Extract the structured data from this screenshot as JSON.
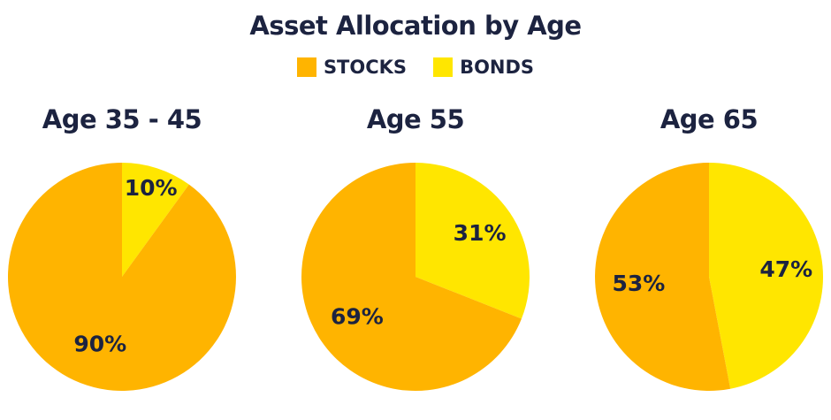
{
  "chart_data": {
    "type": "pie",
    "title": "Asset Allocation by Age",
    "legend": [
      {
        "label": "STOCKS",
        "color": "#FFB400"
      },
      {
        "label": "BONDS",
        "color": "#FFE600"
      }
    ],
    "legend_position": "top-center",
    "charts": [
      {
        "title": "Age 35 - 45",
        "slices": [
          {
            "name": "BONDS",
            "value": 10,
            "label": "10%"
          },
          {
            "name": "STOCKS",
            "value": 90,
            "label": "90%"
          }
        ]
      },
      {
        "title": "Age 55",
        "slices": [
          {
            "name": "BONDS",
            "value": 31,
            "label": "31%"
          },
          {
            "name": "STOCKS",
            "value": 69,
            "label": "69%"
          }
        ]
      },
      {
        "title": "Age 65",
        "slices": [
          {
            "name": "BONDS",
            "value": 47,
            "label": "47%"
          },
          {
            "name": "STOCKS",
            "value": 53,
            "label": "53%"
          }
        ]
      }
    ]
  }
}
